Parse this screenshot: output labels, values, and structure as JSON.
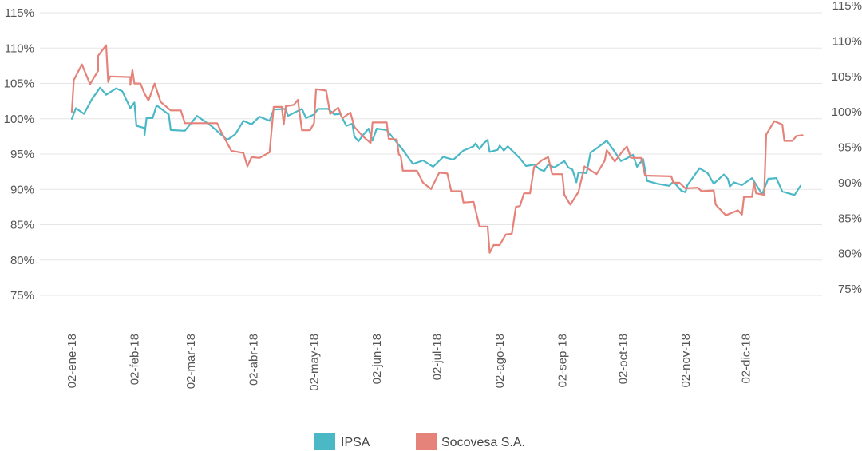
{
  "chart_data": {
    "type": "line",
    "left_axis": {
      "ylim": [
        75,
        115
      ],
      "ticks": [
        "75%",
        "80%",
        "85%",
        "90%",
        "95%",
        "100%",
        "105%",
        "110%",
        "115%"
      ]
    },
    "right_axis": {
      "ylim": [
        75,
        115
      ],
      "ticks": [
        "75%",
        "80%",
        "85%",
        "90%",
        "95%",
        "100%",
        "105%",
        "110%",
        "115%"
      ]
    },
    "x_ticks": [
      "02-ene-18",
      "02-feb-18",
      "02-mar-18",
      "02-abr-18",
      "02-may-18",
      "02-jun-18",
      "02-jul-18",
      "02-ago-18",
      "02-sep-18",
      "02-oct-18",
      "02-nov-18",
      "02-dic-18"
    ],
    "xlim": [
      "2018-01-02",
      "2018-12-31"
    ],
    "grid": true,
    "legend_position": "bottom",
    "series": [
      {
        "name": "IPSA",
        "axis": "left",
        "color": "#4bb8c6",
        "points": [
          [
            "2018-01-02",
            100.0
          ],
          [
            "2018-01-04",
            101.5
          ],
          [
            "2018-01-08",
            100.7
          ],
          [
            "2018-01-12",
            102.8
          ],
          [
            "2018-01-16",
            104.4
          ],
          [
            "2018-01-19",
            103.4
          ],
          [
            "2018-01-24",
            104.3
          ],
          [
            "2018-01-27",
            103.9
          ],
          [
            "2018-01-31",
            101.5
          ],
          [
            "2018-02-02",
            102.3
          ],
          [
            "2018-02-03",
            99.0
          ],
          [
            "2018-02-07",
            98.7
          ],
          [
            "2018-02-07",
            97.6
          ],
          [
            "2018-02-08",
            100.1
          ],
          [
            "2018-02-11",
            100.1
          ],
          [
            "2018-02-13",
            101.9
          ],
          [
            "2018-02-19",
            100.6
          ],
          [
            "2018-02-20",
            98.4
          ],
          [
            "2018-02-27",
            98.3
          ],
          [
            "2018-03-05",
            100.4
          ],
          [
            "2018-03-12",
            99.0
          ],
          [
            "2018-03-20",
            97.0
          ],
          [
            "2018-03-24",
            97.8
          ],
          [
            "2018-03-28",
            99.7
          ],
          [
            "2018-04-01",
            99.2
          ],
          [
            "2018-04-05",
            100.3
          ],
          [
            "2018-04-10",
            99.7
          ],
          [
            "2018-04-12",
            101.3
          ],
          [
            "2018-04-18",
            101.4
          ],
          [
            "2018-04-19",
            100.4
          ],
          [
            "2018-04-26",
            101.4
          ],
          [
            "2018-04-28",
            100.1
          ],
          [
            "2018-05-02",
            100.6
          ],
          [
            "2018-05-04",
            101.4
          ],
          [
            "2018-05-09",
            101.4
          ],
          [
            "2018-05-12",
            100.6
          ],
          [
            "2018-05-15",
            100.7
          ],
          [
            "2018-05-18",
            99.0
          ],
          [
            "2018-05-21",
            99.3
          ],
          [
            "2018-05-22",
            97.5
          ],
          [
            "2018-05-24",
            96.8
          ],
          [
            "2018-05-26",
            97.6
          ],
          [
            "2018-05-29",
            98.6
          ],
          [
            "2018-05-31",
            96.9
          ],
          [
            "2018-06-02",
            98.6
          ],
          [
            "2018-06-07",
            98.4
          ],
          [
            "2018-06-11",
            97.0
          ],
          [
            "2018-06-15",
            95.6
          ],
          [
            "2018-06-20",
            93.6
          ],
          [
            "2018-06-25",
            94.1
          ],
          [
            "2018-06-30",
            93.2
          ],
          [
            "2018-07-05",
            94.6
          ],
          [
            "2018-07-10",
            94.2
          ],
          [
            "2018-07-15",
            95.5
          ],
          [
            "2018-07-20",
            96.1
          ],
          [
            "2018-07-21",
            96.5
          ],
          [
            "2018-07-23",
            95.7
          ],
          [
            "2018-07-25",
            96.5
          ],
          [
            "2018-07-27",
            97.0
          ],
          [
            "2018-07-28",
            95.3
          ],
          [
            "2018-08-01",
            95.6
          ],
          [
            "2018-08-02",
            96.2
          ],
          [
            "2018-08-04",
            95.5
          ],
          [
            "2018-08-06",
            96.1
          ],
          [
            "2018-08-12",
            94.4
          ],
          [
            "2018-08-15",
            93.3
          ],
          [
            "2018-08-19",
            93.5
          ],
          [
            "2018-08-22",
            92.8
          ],
          [
            "2018-08-24",
            92.6
          ],
          [
            "2018-08-26",
            93.5
          ],
          [
            "2018-08-29",
            93.1
          ],
          [
            "2018-09-03",
            94.0
          ],
          [
            "2018-09-05",
            93.1
          ],
          [
            "2018-09-07",
            92.8
          ],
          [
            "2018-09-09",
            91.0
          ],
          [
            "2018-09-10",
            92.4
          ],
          [
            "2018-09-14",
            92.3
          ],
          [
            "2018-09-16",
            95.2
          ],
          [
            "2018-09-19",
            95.8
          ],
          [
            "2018-09-24",
            96.9
          ],
          [
            "2018-09-27",
            95.7
          ],
          [
            "2018-10-01",
            94.0
          ],
          [
            "2018-10-04",
            94.4
          ],
          [
            "2018-10-07",
            94.9
          ],
          [
            "2018-10-09",
            93.2
          ],
          [
            "2018-10-12",
            94.3
          ],
          [
            "2018-10-14",
            91.2
          ],
          [
            "2018-10-19",
            90.8
          ],
          [
            "2018-10-23",
            90.6
          ],
          [
            "2018-10-25",
            90.5
          ],
          [
            "2018-10-27",
            91.1
          ],
          [
            "2018-10-31",
            89.8
          ],
          [
            "2018-11-02",
            89.6
          ],
          [
            "2018-11-03",
            90.6
          ],
          [
            "2018-11-09",
            93.0
          ],
          [
            "2018-11-13",
            92.3
          ],
          [
            "2018-11-16",
            90.8
          ],
          [
            "2018-11-21",
            92.1
          ],
          [
            "2018-11-23",
            91.5
          ],
          [
            "2018-11-24",
            90.4
          ],
          [
            "2018-11-26",
            91.0
          ],
          [
            "2018-11-30",
            90.6
          ],
          [
            "2018-12-05",
            91.6
          ],
          [
            "2018-12-10",
            89.3
          ],
          [
            "2018-12-13",
            91.5
          ],
          [
            "2018-12-17",
            91.6
          ],
          [
            "2018-12-20",
            89.7
          ],
          [
            "2018-12-26",
            89.2
          ],
          [
            "2018-12-29",
            90.5
          ]
        ]
      },
      {
        "name": "Socovesa S.A.",
        "axis": "right",
        "color": "#e5837b",
        "points": [
          [
            "2018-01-02",
            100.0
          ],
          [
            "2018-01-03",
            104.5
          ],
          [
            "2018-01-07",
            106.7
          ],
          [
            "2018-01-11",
            103.9
          ],
          [
            "2018-01-15",
            105.8
          ],
          [
            "2018-01-15",
            107.9
          ],
          [
            "2018-01-19",
            109.4
          ],
          [
            "2018-01-20",
            104.2
          ],
          [
            "2018-01-21",
            105.0
          ],
          [
            "2018-01-31",
            104.9
          ],
          [
            "2018-01-31",
            103.8
          ],
          [
            "2018-02-01",
            105.9
          ],
          [
            "2018-02-02",
            104.0
          ],
          [
            "2018-02-05",
            104.0
          ],
          [
            "2018-02-07",
            102.6
          ],
          [
            "2018-02-09",
            101.6
          ],
          [
            "2018-02-12",
            104.0
          ],
          [
            "2018-02-15",
            101.4
          ],
          [
            "2018-02-20",
            100.2
          ],
          [
            "2018-02-25",
            100.2
          ],
          [
            "2018-02-27",
            98.4
          ],
          [
            "2018-03-15",
            98.4
          ],
          [
            "2018-03-17",
            97.2
          ],
          [
            "2018-03-22",
            94.5
          ],
          [
            "2018-03-28",
            94.2
          ],
          [
            "2018-03-30",
            92.3
          ],
          [
            "2018-04-01",
            93.6
          ],
          [
            "2018-04-05",
            93.5
          ],
          [
            "2018-04-10",
            94.3
          ],
          [
            "2018-04-12",
            100.7
          ],
          [
            "2018-04-16",
            100.7
          ],
          [
            "2018-04-17",
            98.2
          ],
          [
            "2018-04-18",
            100.8
          ],
          [
            "2018-04-22",
            101.0
          ],
          [
            "2018-04-24",
            101.7
          ],
          [
            "2018-04-26",
            97.4
          ],
          [
            "2018-04-30",
            97.4
          ],
          [
            "2018-05-02",
            98.4
          ],
          [
            "2018-05-03",
            103.2
          ],
          [
            "2018-05-08",
            103.0
          ],
          [
            "2018-05-10",
            99.7
          ],
          [
            "2018-05-14",
            100.6
          ],
          [
            "2018-05-16",
            99.1
          ],
          [
            "2018-05-20",
            99.9
          ],
          [
            "2018-05-22",
            97.9
          ],
          [
            "2018-05-26",
            96.6
          ],
          [
            "2018-05-30",
            95.6
          ],
          [
            "2018-05-31",
            98.5
          ],
          [
            "2018-06-07",
            98.5
          ],
          [
            "2018-06-08",
            96.2
          ],
          [
            "2018-06-12",
            96.1
          ],
          [
            "2018-06-13",
            94.0
          ],
          [
            "2018-06-14",
            93.7
          ],
          [
            "2018-06-15",
            91.7
          ],
          [
            "2018-06-22",
            91.7
          ],
          [
            "2018-06-25",
            90.0
          ],
          [
            "2018-06-29",
            89.1
          ],
          [
            "2018-07-03",
            91.4
          ],
          [
            "2018-07-07",
            91.3
          ],
          [
            "2018-07-09",
            88.8
          ],
          [
            "2018-07-14",
            88.8
          ],
          [
            "2018-07-15",
            87.2
          ],
          [
            "2018-07-20",
            87.3
          ],
          [
            "2018-07-23",
            83.8
          ],
          [
            "2018-07-27",
            83.8
          ],
          [
            "2018-07-28",
            80.1
          ],
          [
            "2018-07-30",
            81.2
          ],
          [
            "2018-08-02",
            81.2
          ],
          [
            "2018-08-05",
            82.7
          ],
          [
            "2018-08-08",
            82.8
          ],
          [
            "2018-08-10",
            86.6
          ],
          [
            "2018-08-12",
            86.7
          ],
          [
            "2018-08-14",
            88.5
          ],
          [
            "2018-08-17",
            88.5
          ],
          [
            "2018-08-19",
            92.2
          ],
          [
            "2018-08-23",
            93.2
          ],
          [
            "2018-08-26",
            93.6
          ],
          [
            "2018-08-28",
            91.2
          ],
          [
            "2018-09-02",
            91.2
          ],
          [
            "2018-09-03",
            88.3
          ],
          [
            "2018-09-06",
            86.9
          ],
          [
            "2018-09-10",
            88.7
          ],
          [
            "2018-09-13",
            92.3
          ],
          [
            "2018-09-19",
            91.2
          ],
          [
            "2018-09-23",
            93.1
          ],
          [
            "2018-09-24",
            94.6
          ],
          [
            "2018-09-28",
            93.0
          ],
          [
            "2018-10-02",
            94.5
          ],
          [
            "2018-10-04",
            95.1
          ],
          [
            "2018-10-06",
            93.5
          ],
          [
            "2018-10-11",
            93.5
          ],
          [
            "2018-10-13",
            91.0
          ],
          [
            "2018-10-26",
            90.9
          ],
          [
            "2018-10-27",
            90.0
          ],
          [
            "2018-10-30",
            90.0
          ],
          [
            "2018-11-02",
            89.2
          ],
          [
            "2018-11-08",
            89.3
          ],
          [
            "2018-11-10",
            88.8
          ],
          [
            "2018-11-16",
            88.9
          ],
          [
            "2018-11-17",
            86.9
          ],
          [
            "2018-11-22",
            85.4
          ],
          [
            "2018-11-28",
            86.1
          ],
          [
            "2018-11-30",
            85.5
          ],
          [
            "2018-12-01",
            88.0
          ],
          [
            "2018-12-05",
            88.0
          ],
          [
            "2018-12-06",
            90.0
          ],
          [
            "2018-12-07",
            88.5
          ],
          [
            "2018-12-11",
            88.3
          ],
          [
            "2018-12-12",
            96.8
          ],
          [
            "2018-12-16",
            98.7
          ],
          [
            "2018-12-20",
            98.2
          ],
          [
            "2018-12-21",
            95.9
          ],
          [
            "2018-12-25",
            95.9
          ],
          [
            "2018-12-27",
            96.6
          ],
          [
            "2018-12-30",
            96.7
          ]
        ]
      }
    ]
  }
}
